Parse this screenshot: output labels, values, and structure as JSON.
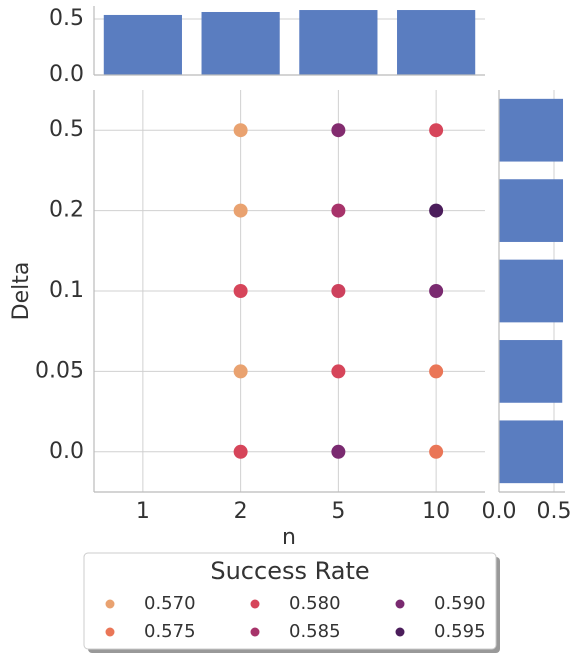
{
  "chart_data": [
    {
      "type": "bar",
      "values": [
        0.536,
        0.5625,
        0.58,
        0.58
      ],
      "color": "#5a7dc0",
      "ylim": [
        0,
        0.616
      ],
      "yticks": [
        {
          "value": 0,
          "label": "0.0"
        },
        {
          "value": 0.5,
          "label": "0.5"
        }
      ],
      "grid": true
    },
    {
      "type": "scatter",
      "xlabel": "n",
      "ylabel": "Delta",
      "xcategories": [
        "1",
        "2",
        "5",
        "10"
      ],
      "ycategories": [
        "0.0",
        "0.05",
        "0.1",
        "0.2",
        "0.5"
      ],
      "x": [
        "2",
        "5",
        "10",
        "2",
        "5",
        "10",
        "2",
        "5",
        "10",
        "2",
        "5",
        "10",
        "2",
        "5",
        "10"
      ],
      "y": [
        "0.5",
        "0.5",
        "0.5",
        "0.2",
        "0.2",
        "0.2",
        "0.1",
        "0.1",
        "0.1",
        "0.05",
        "0.05",
        "0.05",
        "0.0",
        "0.0",
        "0.0"
      ],
      "values": [
        0.57,
        0.589,
        0.58,
        0.57,
        0.585,
        0.595,
        0.58,
        0.581,
        0.59,
        0.57,
        0.58,
        0.575,
        0.58,
        0.59,
        0.575
      ],
      "grid": true,
      "legend": {
        "title": "Success Rate",
        "entries": [
          {
            "label": "0.570",
            "value": 0.57,
            "color": "#e9a270"
          },
          {
            "label": "0.575",
            "value": 0.575,
            "color": "#ea7657"
          },
          {
            "label": "0.580",
            "value": 0.58,
            "color": "#d6455a"
          },
          {
            "label": "0.585",
            "value": 0.585,
            "color": "#a7336a"
          },
          {
            "label": "0.590",
            "value": 0.59,
            "color": "#7a2a70"
          },
          {
            "label": "0.595",
            "value": 0.595,
            "color": "#4b1d5b"
          }
        ]
      }
    },
    {
      "type": "barh",
      "values": [
        0.582,
        0.575,
        0.582,
        0.582,
        0.582
      ],
      "color": "#5a7dc0",
      "xlim": [
        0,
        0.6
      ],
      "xticks": [
        {
          "value": 0,
          "label": "0.0"
        },
        {
          "value": 0.5,
          "label": "0.5"
        }
      ],
      "grid": true
    }
  ]
}
